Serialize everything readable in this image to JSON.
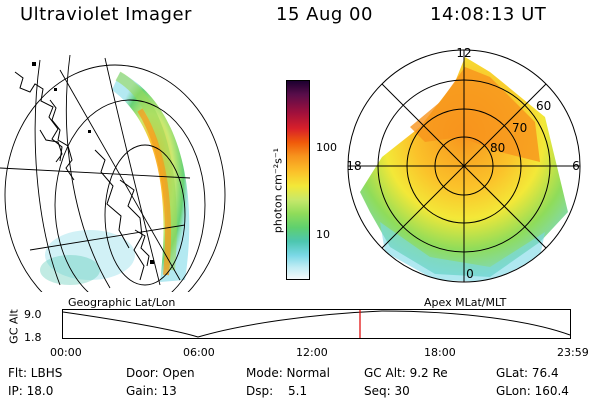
{
  "header": {
    "instrument": "Ultraviolet Imager",
    "date": "15 Aug 00",
    "time": "14:08:13 UT"
  },
  "geo_panel": {
    "caption": "Geographic Lat/Lon"
  },
  "colorbar": {
    "unit": "photon cm⁻²s⁻¹",
    "ticks": [
      "100",
      "10"
    ],
    "colors": [
      "#1c0030",
      "#5a0d4a",
      "#a0103c",
      "#d8202a",
      "#f05a0a",
      "#f7941d",
      "#fbc22a",
      "#f3e838",
      "#c7e86a",
      "#8fdc5a",
      "#5fd06e",
      "#4dc6b0",
      "#7ad8e6",
      "#c0ecf4",
      "#f4f8fa"
    ]
  },
  "polar_panel": {
    "caption": "Apex MLat/MLT",
    "mlt_labels": [
      "12",
      "6",
      "0",
      "18"
    ],
    "lat_labels": [
      "60",
      "70",
      "80"
    ]
  },
  "altitude_plot": {
    "ylabel": "GC Alt",
    "y_ticks": [
      "9.0",
      "1.8"
    ],
    "x_ticks": [
      "00:00",
      "06:00",
      "12:00",
      "18:00",
      "23:59"
    ],
    "marker_color": "#e00000"
  },
  "status": {
    "flt": "Flt: LBHS",
    "ip": "IP: 18.0",
    "door": "Door: Open",
    "gain": "Gain: 13",
    "mode": "Mode: Normal",
    "dsp_label": "Dsp:",
    "dsp_value": "5.1",
    "gc_alt": "GC Alt: 9.2 Re",
    "seq": "Seq: 30",
    "glat": "GLat: 76.4",
    "glon": "GLon: 160.4"
  }
}
